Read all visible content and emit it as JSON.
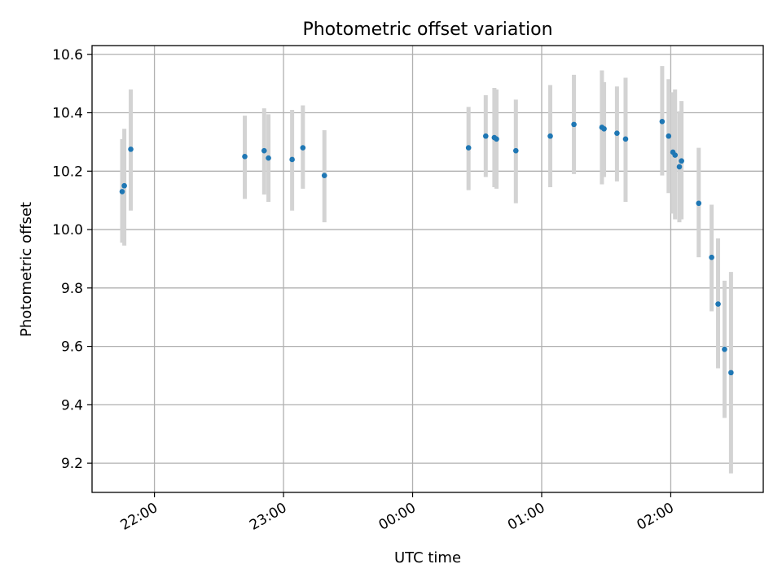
{
  "chart_data": {
    "type": "scatter",
    "title": "Photometric offset variation",
    "xlabel": "UTC time",
    "ylabel": "Photometric offset",
    "x_tick_labels": [
      "22:00",
      "23:00",
      "00:00",
      "01:00",
      "02:00"
    ],
    "x_ticks": [
      "2000-01-01 22:00",
      "2000-01-01 23:00",
      "2000-01-02 00:00",
      "2000-01-02 01:00",
      "2000-01-02 02:00"
    ],
    "y_ticks": [
      9.2,
      9.4,
      9.6,
      9.8,
      10.0,
      10.2,
      10.4,
      10.6
    ],
    "y_tick_labels": [
      "9.2",
      "9.4",
      "9.6",
      "9.8",
      "10.0",
      "10.2",
      "10.4",
      "10.6"
    ],
    "xlim": [
      "2000-01-01 21:31",
      "2000-01-02 02:43"
    ],
    "ylim": [
      9.1,
      10.63
    ],
    "grid": true,
    "colors": {
      "marker": "#1f77b4",
      "errorbar": "#d3d3d3",
      "grid": "#b0b0b0"
    },
    "points": [
      {
        "t": "2000-01-01 21:45",
        "y": 10.13,
        "lo": 9.955,
        "hi": 10.31
      },
      {
        "t": "2000-01-01 21:46",
        "y": 10.15,
        "lo": 9.945,
        "hi": 10.345
      },
      {
        "t": "2000-01-01 21:49",
        "y": 10.275,
        "lo": 10.065,
        "hi": 10.48
      },
      {
        "t": "2000-01-01 22:42",
        "y": 10.25,
        "lo": 10.105,
        "hi": 10.39
      },
      {
        "t": "2000-01-01 22:51",
        "y": 10.27,
        "lo": 10.12,
        "hi": 10.415
      },
      {
        "t": "2000-01-01 22:53",
        "y": 10.245,
        "lo": 10.095,
        "hi": 10.395
      },
      {
        "t": "2000-01-01 23:04",
        "y": 10.24,
        "lo": 10.065,
        "hi": 10.41
      },
      {
        "t": "2000-01-01 23:09",
        "y": 10.28,
        "lo": 10.14,
        "hi": 10.425
      },
      {
        "t": "2000-01-01 23:19",
        "y": 10.185,
        "lo": 10.025,
        "hi": 10.34
      },
      {
        "t": "2000-01-02 00:26",
        "y": 10.28,
        "lo": 10.135,
        "hi": 10.42
      },
      {
        "t": "2000-01-02 00:34",
        "y": 10.32,
        "lo": 10.18,
        "hi": 10.46
      },
      {
        "t": "2000-01-02 00:38",
        "y": 10.315,
        "lo": 10.145,
        "hi": 10.485
      },
      {
        "t": "2000-01-02 00:39",
        "y": 10.31,
        "lo": 10.14,
        "hi": 10.48
      },
      {
        "t": "2000-01-02 00:48",
        "y": 10.27,
        "lo": 10.09,
        "hi": 10.445
      },
      {
        "t": "2000-01-02 01:04",
        "y": 10.32,
        "lo": 10.145,
        "hi": 10.495
      },
      {
        "t": "2000-01-02 01:15",
        "y": 10.36,
        "lo": 10.19,
        "hi": 10.53
      },
      {
        "t": "2000-01-02 01:28",
        "y": 10.35,
        "lo": 10.155,
        "hi": 10.545
      },
      {
        "t": "2000-01-02 01:29",
        "y": 10.345,
        "lo": 10.18,
        "hi": 10.505
      },
      {
        "t": "2000-01-02 01:35",
        "y": 10.33,
        "lo": 10.165,
        "hi": 10.49
      },
      {
        "t": "2000-01-02 01:39",
        "y": 10.31,
        "lo": 10.095,
        "hi": 10.52
      },
      {
        "t": "2000-01-02 01:56",
        "y": 10.37,
        "lo": 10.185,
        "hi": 10.56
      },
      {
        "t": "2000-01-02 01:59",
        "y": 10.32,
        "lo": 10.125,
        "hi": 10.515
      },
      {
        "t": "2000-01-02 02:01",
        "y": 10.265,
        "lo": 10.055,
        "hi": 10.47
      },
      {
        "t": "2000-01-02 02:02",
        "y": 10.255,
        "lo": 10.035,
        "hi": 10.48
      },
      {
        "t": "2000-01-02 02:04",
        "y": 10.215,
        "lo": 10.025,
        "hi": 10.405
      },
      {
        "t": "2000-01-02 02:05",
        "y": 10.235,
        "lo": 10.035,
        "hi": 10.44
      },
      {
        "t": "2000-01-02 02:13",
        "y": 10.09,
        "lo": 9.905,
        "hi": 10.28
      },
      {
        "t": "2000-01-02 02:19",
        "y": 9.905,
        "lo": 9.72,
        "hi": 10.085
      },
      {
        "t": "2000-01-02 02:22",
        "y": 9.745,
        "lo": 9.525,
        "hi": 9.97
      },
      {
        "t": "2000-01-02 02:25",
        "y": 9.59,
        "lo": 9.355,
        "hi": 9.825
      },
      {
        "t": "2000-01-02 02:28",
        "y": 9.51,
        "lo": 9.165,
        "hi": 9.855
      }
    ]
  }
}
